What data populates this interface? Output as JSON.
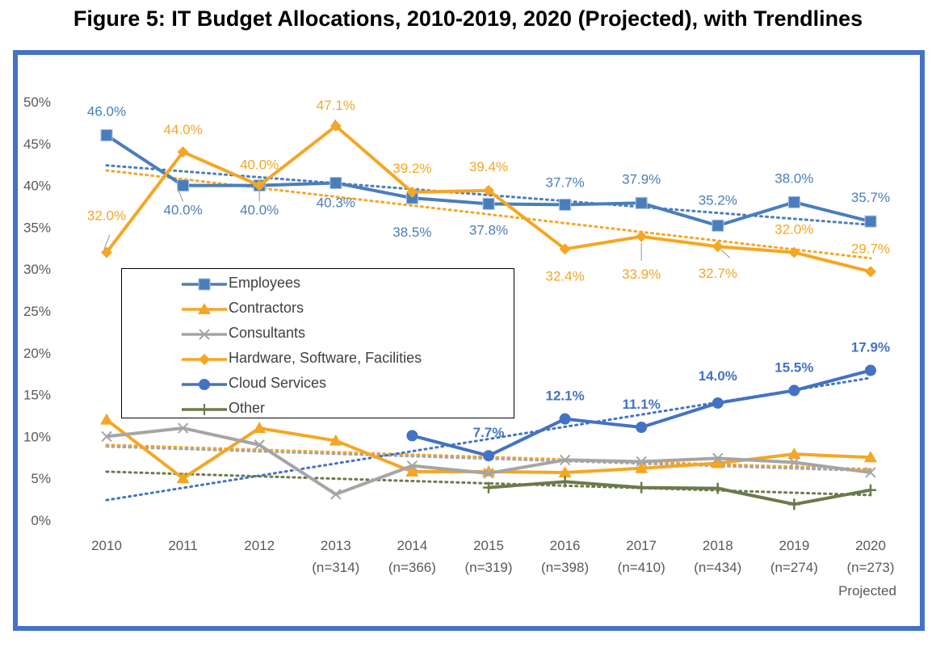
{
  "title": "Figure 5: IT Budget Allocations, 2010-2019, 2020 (Projected), with Trendlines",
  "chart_data": {
    "type": "line",
    "categories": [
      "2010",
      "2011",
      "2012",
      "2013",
      "2014",
      "2015",
      "2016",
      "2017",
      "2018",
      "2019",
      "2020"
    ],
    "category_sublabels": [
      "",
      "",
      "",
      "(n=314)",
      "(n=366)",
      "(n=319)",
      "(n=398)",
      "(n=410)",
      "(n=434)",
      "(n=274)",
      "(n=273)"
    ],
    "category_note": {
      "index": 10,
      "text": "Projected"
    },
    "ylim": [
      0,
      50
    ],
    "yticks": [
      0,
      5,
      10,
      15,
      20,
      25,
      30,
      35,
      40,
      45,
      50
    ],
    "ytick_labels": [
      "0%",
      "5%",
      "10%",
      "15%",
      "20%",
      "25%",
      "30%",
      "35%",
      "40%",
      "45%",
      "50%"
    ],
    "grid": false,
    "legend_position": "center-left",
    "series": [
      {
        "name": "Employees",
        "color": "#4a7ebb",
        "marker": "square",
        "values": [
          46.0,
          40.0,
          40.0,
          40.3,
          38.5,
          37.8,
          37.7,
          37.9,
          35.2,
          38.0,
          35.7
        ],
        "labels": [
          "46.0%",
          "40.0%",
          "40.0%",
          "40.3%",
          "38.5%",
          "37.8%",
          "37.7%",
          "37.9%",
          "35.2%",
          "38.0%",
          "35.7%"
        ],
        "trend": [
          42.4,
          35.3
        ]
      },
      {
        "name": "Contractors",
        "color": "#f5a623",
        "marker": "triangle",
        "values": [
          12.0,
          5.0,
          11.0,
          9.5,
          5.8,
          5.8,
          5.7,
          6.2,
          6.8,
          7.9,
          7.5
        ],
        "trend": [
          9.0,
          6.1
        ]
      },
      {
        "name": "Consultants",
        "color": "#a5a5a5",
        "marker": "x",
        "values": [
          10.0,
          11.0,
          9.0,
          3.1,
          6.5,
          5.6,
          7.2,
          7.0,
          7.4,
          6.9,
          5.7
        ],
        "trend": [
          8.8,
          5.9
        ]
      },
      {
        "name": "Hardware, Software, Facilities",
        "color": "#f5a623",
        "marker": "diamond",
        "values": [
          32.0,
          44.0,
          40.0,
          47.1,
          39.2,
          39.4,
          32.4,
          33.9,
          32.7,
          32.0,
          29.7
        ],
        "labels": [
          "32.0%",
          "44.0%",
          "40.0%",
          "47.1%",
          "39.2%",
          "39.4%",
          "32.4%",
          "33.9%",
          "32.7%",
          "32.0%",
          "29.7%"
        ],
        "trend": [
          41.8,
          31.3
        ]
      },
      {
        "name": "Cloud Services",
        "color": "#4472c4",
        "marker": "circle",
        "values": [
          null,
          null,
          null,
          null,
          10.1,
          7.7,
          12.1,
          11.1,
          14.0,
          15.5,
          17.9
        ],
        "labels": [
          "",
          "",
          "",
          "",
          "",
          "7.7%",
          "12.1%",
          "11.1%",
          "14.0%",
          "15.5%",
          "17.9%"
        ],
        "trend": [
          2.4,
          17.0
        ]
      },
      {
        "name": "Other",
        "color": "#6b7a4b",
        "marker": "plus",
        "values": [
          null,
          null,
          null,
          null,
          null,
          3.9,
          4.6,
          3.9,
          3.8,
          1.9,
          3.6
        ],
        "trend": [
          5.8,
          3.0
        ]
      }
    ]
  }
}
